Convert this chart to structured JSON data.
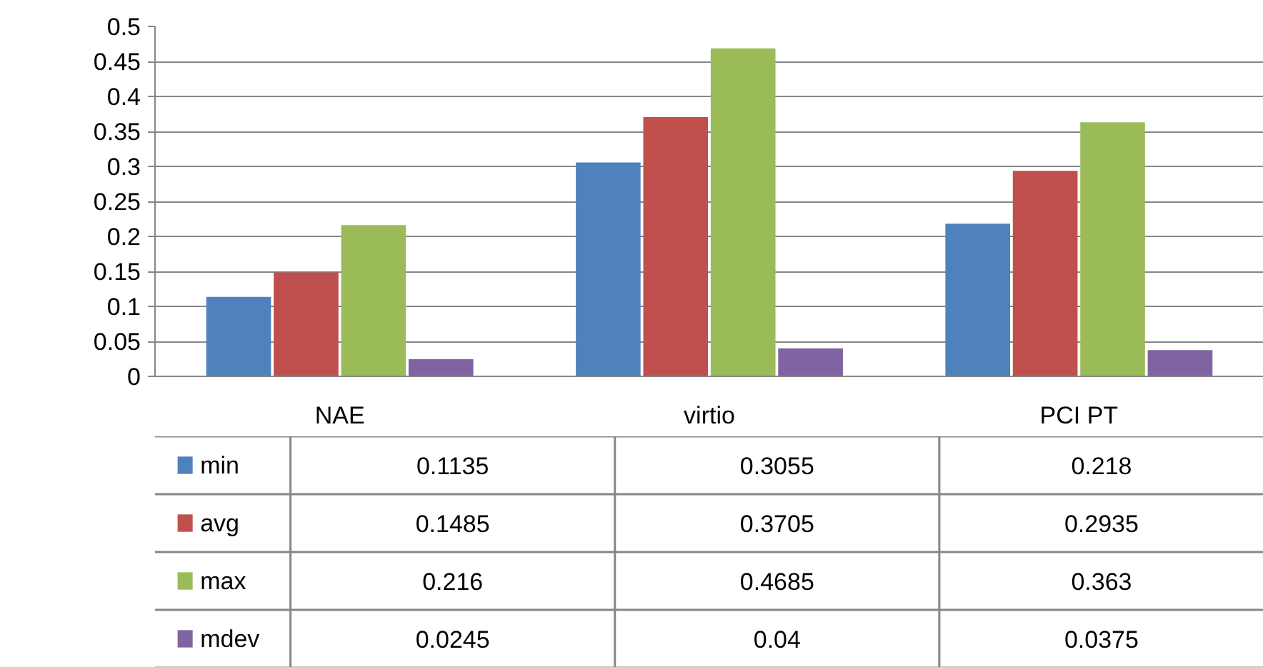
{
  "chart_data": {
    "type": "bar",
    "categories": [
      "NAE",
      "virtio",
      "PCI PT"
    ],
    "series": [
      {
        "name": "min",
        "color": "#4f81bd",
        "values": [
          0.1135,
          0.3055,
          0.218
        ]
      },
      {
        "name": "avg",
        "color": "#c0504d",
        "values": [
          0.1485,
          0.3705,
          0.2935
        ]
      },
      {
        "name": "max",
        "color": "#9bbb59",
        "values": [
          0.216,
          0.4685,
          0.363
        ]
      },
      {
        "name": "mdev",
        "color": "#8064a2",
        "values": [
          0.0245,
          0.04,
          0.0375
        ]
      }
    ],
    "ylim": [
      0,
      0.5
    ],
    "yticks": [
      0,
      0.05,
      0.1,
      0.15,
      0.2,
      0.25,
      0.3,
      0.35,
      0.4,
      0.45,
      0.5
    ],
    "grid": "y",
    "legend": "bottom",
    "data_labels": true
  }
}
